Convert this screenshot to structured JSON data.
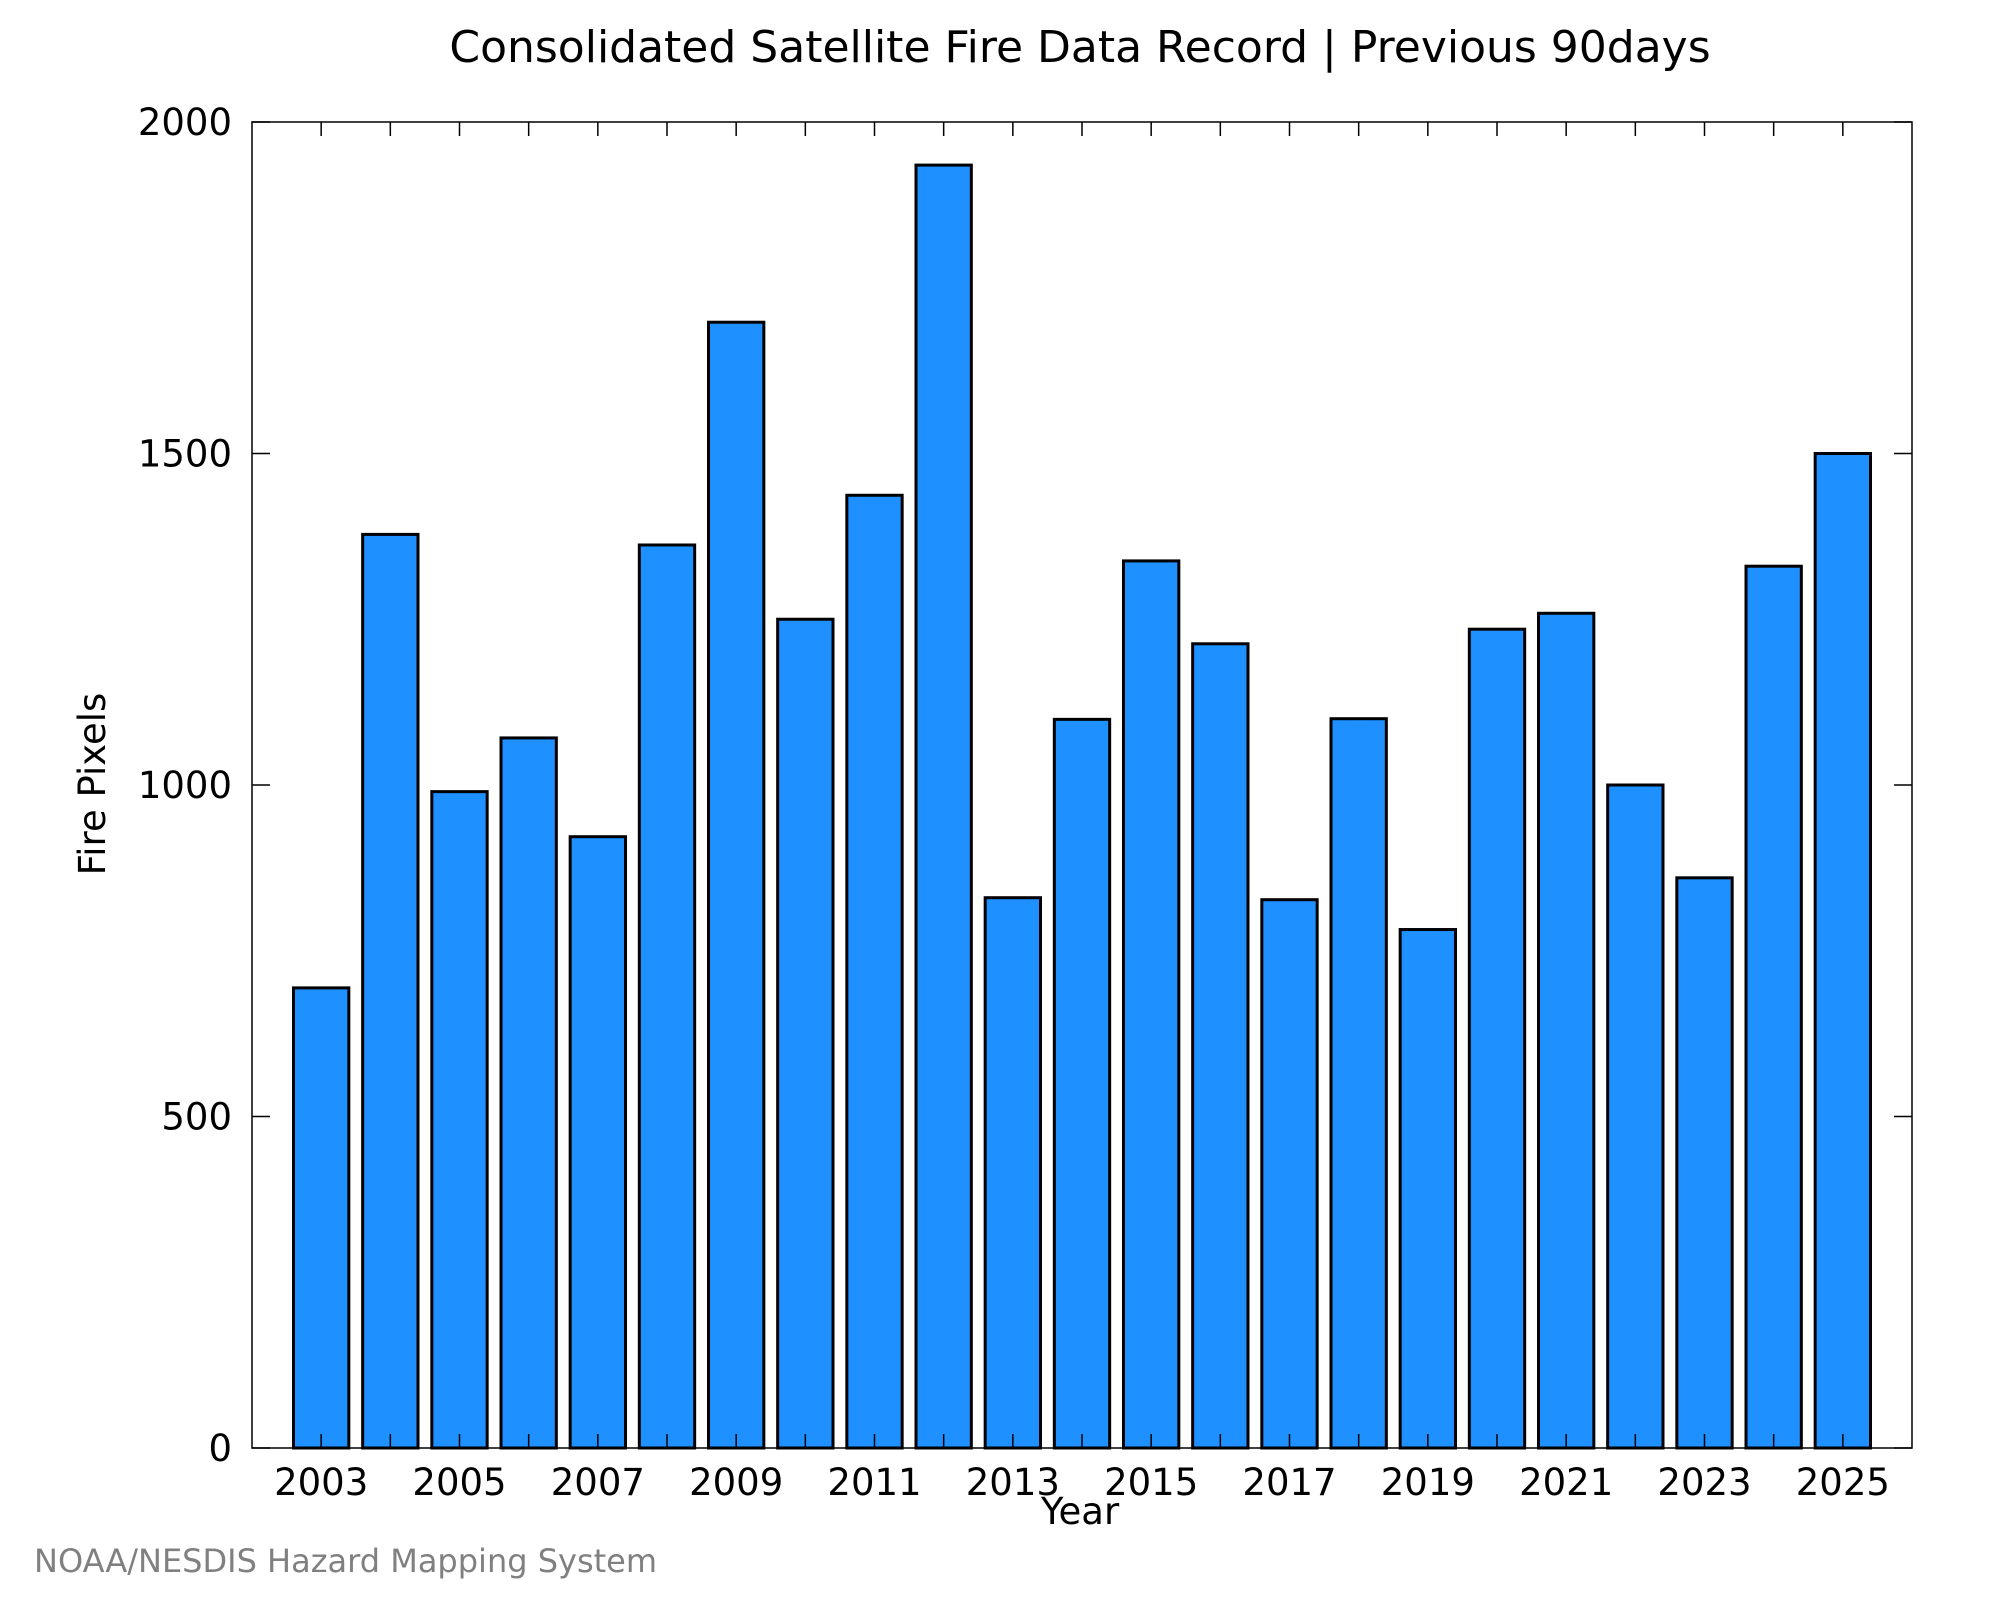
{
  "chart_data": {
    "type": "bar",
    "title": "Consolidated Satellite Fire Data Record | Previous 90days",
    "xlabel": "Year",
    "ylabel": "Fire Pixels",
    "categories": [
      "2003",
      "2004",
      "2005",
      "2006",
      "2007",
      "2008",
      "2009",
      "2010",
      "2011",
      "2012",
      "2013",
      "2014",
      "2015",
      "2016",
      "2017",
      "2018",
      "2019",
      "2020",
      "2021",
      "2022",
      "2023",
      "2024",
      "2025"
    ],
    "values": [
      694,
      1378,
      990,
      1071,
      922,
      1362,
      1698,
      1250,
      1437,
      1935,
      830,
      1099,
      1338,
      1213,
      827,
      1100,
      782,
      1235,
      1259,
      1000,
      860,
      1330,
      1500
    ],
    "x_tick_labels": [
      "2003",
      "2005",
      "2007",
      "2009",
      "2011",
      "2013",
      "2015",
      "2017",
      "2019",
      "2021",
      "2023",
      "2025"
    ],
    "y_tick_labels": [
      "0",
      "500",
      "1000",
      "1500",
      "2000"
    ],
    "ylim": [
      0,
      2000
    ],
    "grid": false,
    "bar_color": "#1e90ff",
    "bar_edge_color": "#000000"
  },
  "credit": "NOAA/NESDIS Hazard Mapping System"
}
